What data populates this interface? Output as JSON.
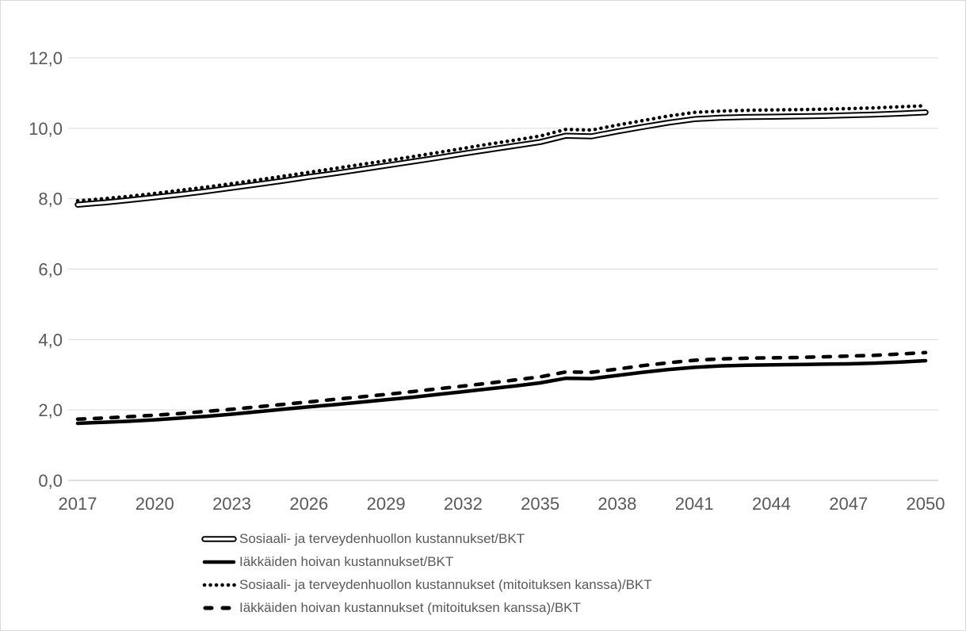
{
  "chart_data": {
    "type": "line",
    "title": "",
    "xlabel": "",
    "ylabel": "",
    "ylim": [
      0,
      12
    ],
    "grid": true,
    "legend_position": "bottom-left",
    "x": [
      2017,
      2018,
      2019,
      2020,
      2021,
      2022,
      2023,
      2024,
      2025,
      2026,
      2027,
      2028,
      2029,
      2030,
      2031,
      2032,
      2033,
      2034,
      2035,
      2036,
      2037,
      2038,
      2039,
      2040,
      2041,
      2042,
      2043,
      2044,
      2045,
      2046,
      2047,
      2048,
      2049,
      2050
    ],
    "xticks": [
      "2017",
      "2020",
      "2023",
      "2026",
      "2029",
      "2032",
      "2035",
      "2038",
      "2041",
      "2044",
      "2047",
      "2050"
    ],
    "yticks": [
      {
        "value": 0,
        "label": "0,0"
      },
      {
        "value": 2,
        "label": "2,0"
      },
      {
        "value": 4,
        "label": "4,0"
      },
      {
        "value": 6,
        "label": "6,0"
      },
      {
        "value": 8,
        "label": "8,0"
      },
      {
        "value": 10,
        "label": "10,0"
      },
      {
        "value": 12,
        "label": "12,0"
      }
    ],
    "series": [
      {
        "name": "Sosiaali- ja terveydenhuollon kustannukset/BKT",
        "line_style": "double",
        "color": "#000000",
        "values": [
          7.83,
          7.89,
          7.96,
          8.04,
          8.12,
          8.21,
          8.31,
          8.41,
          8.51,
          8.62,
          8.72,
          8.83,
          8.94,
          9.05,
          9.16,
          9.28,
          9.39,
          9.5,
          9.61,
          9.79,
          9.77,
          9.91,
          10.04,
          10.16,
          10.26,
          10.3,
          10.32,
          10.33,
          10.34,
          10.35,
          10.37,
          10.39,
          10.42,
          10.45
        ]
      },
      {
        "name": "Iäkkäiden hoivan kustannukset/BKT",
        "line_style": "solid",
        "color": "#000000",
        "values": [
          1.62,
          1.65,
          1.68,
          1.72,
          1.77,
          1.82,
          1.88,
          1.95,
          2.02,
          2.09,
          2.15,
          2.22,
          2.29,
          2.36,
          2.44,
          2.52,
          2.6,
          2.68,
          2.77,
          2.9,
          2.89,
          2.98,
          3.07,
          3.15,
          3.21,
          3.25,
          3.27,
          3.28,
          3.29,
          3.3,
          3.31,
          3.33,
          3.36,
          3.4
        ]
      },
      {
        "name": "Sosiaali- ja terveydenhuollon kustannukset (mitoituksen kanssa)/BKT",
        "line_style": "dotted",
        "color": "#000000",
        "values": [
          7.94,
          8.0,
          8.07,
          8.15,
          8.24,
          8.33,
          8.43,
          8.53,
          8.64,
          8.75,
          8.86,
          8.97,
          9.08,
          9.19,
          9.31,
          9.43,
          9.55,
          9.66,
          9.78,
          9.97,
          9.95,
          10.09,
          10.22,
          10.35,
          10.45,
          10.49,
          10.51,
          10.52,
          10.53,
          10.54,
          10.56,
          10.58,
          10.61,
          10.64
        ]
      },
      {
        "name": "Iäkkäiden hoivan kustannukset (mitoituksen kanssa)/BKT",
        "line_style": "dashed",
        "color": "#000000",
        "values": [
          1.74,
          1.77,
          1.81,
          1.85,
          1.9,
          1.96,
          2.02,
          2.09,
          2.16,
          2.23,
          2.3,
          2.37,
          2.44,
          2.52,
          2.6,
          2.68,
          2.76,
          2.85,
          2.94,
          3.08,
          3.07,
          3.16,
          3.26,
          3.34,
          3.41,
          3.45,
          3.47,
          3.48,
          3.49,
          3.51,
          3.53,
          3.55,
          3.59,
          3.63
        ]
      }
    ],
    "colors": {
      "grid": "#d9d9d9",
      "axis_line": "#bfbfbf",
      "tick_label": "#595959",
      "legend_text": "#595959",
      "background": "#ffffff",
      "frame_border": "#d9d9d9"
    }
  }
}
